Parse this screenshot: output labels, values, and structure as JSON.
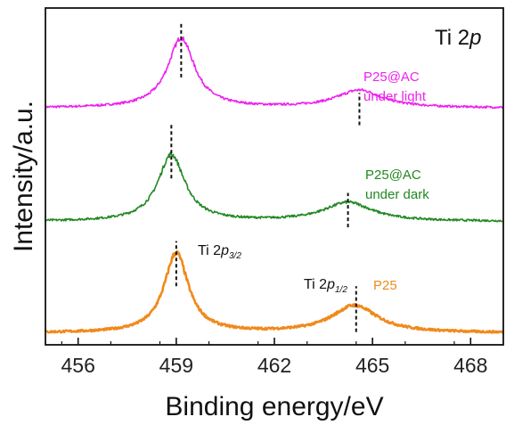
{
  "chart_data": {
    "type": "line",
    "title": "Ti 2p",
    "title_parts": [
      "Ti 2",
      "p"
    ],
    "xlabel": "Binding energy/eV",
    "ylabel": "Intensity/a.u.",
    "xlim": [
      455,
      469
    ],
    "ylim": [
      0,
      1
    ],
    "x_ticks": [
      456,
      459,
      462,
      465,
      468
    ],
    "x_tick_labels": [
      "456",
      "459",
      "462",
      "465",
      "468"
    ],
    "grid": false,
    "series": [
      {
        "color": "#ee22ee",
        "offset": 0.703,
        "peaks": [
          {
            "center": 459.15,
            "height": 0.207,
            "width": 0.5
          },
          {
            "center": 464.6,
            "height": 0.052,
            "width": 0.85
          }
        ],
        "marker_lines": [
          {
            "x": 459.15,
            "y_bottom": 0.794,
            "y_top": 0.954
          },
          {
            "x": 464.6,
            "y_bottom": 0.652,
            "y_top": 0.748
          }
        ]
      },
      {
        "color": "#228822",
        "offset": 0.366,
        "peaks": [
          {
            "center": 458.85,
            "height": 0.198,
            "width": 0.5
          },
          {
            "center": 464.25,
            "height": 0.056,
            "width": 0.9
          }
        ],
        "marker_lines": [
          {
            "x": 458.85,
            "y_bottom": 0.494,
            "y_top": 0.656
          },
          {
            "x": 464.25,
            "y_bottom": 0.349,
            "y_top": 0.451
          }
        ]
      },
      {
        "color": "#f08a1c",
        "offset": 0.035,
        "peaks": [
          {
            "center": 459.0,
            "height": 0.237,
            "width": 0.45
          },
          {
            "center": 464.45,
            "height": 0.081,
            "width": 0.85
          }
        ],
        "marker_lines": [
          {
            "x": 459.0,
            "y_bottom": 0.174,
            "y_top": 0.308
          },
          {
            "x": 464.5,
            "y_bottom": 0.038,
            "y_top": 0.174
          }
        ]
      }
    ],
    "annotations": [
      {
        "lines": [
          "P25@AC",
          "under light"
        ],
        "color": "#ee22ee"
      },
      {
        "lines": [
          "P25@AC",
          "under dark"
        ],
        "color": "#228822"
      },
      {
        "lines": [
          "P25"
        ],
        "color": "#f08a1c"
      },
      {
        "main": "Ti 2",
        "italic": "p",
        "sub": "3/2",
        "color": "#111111"
      },
      {
        "main": "Ti 2",
        "italic": "p",
        "sub": "1/2",
        "color": "#111111"
      }
    ]
  }
}
